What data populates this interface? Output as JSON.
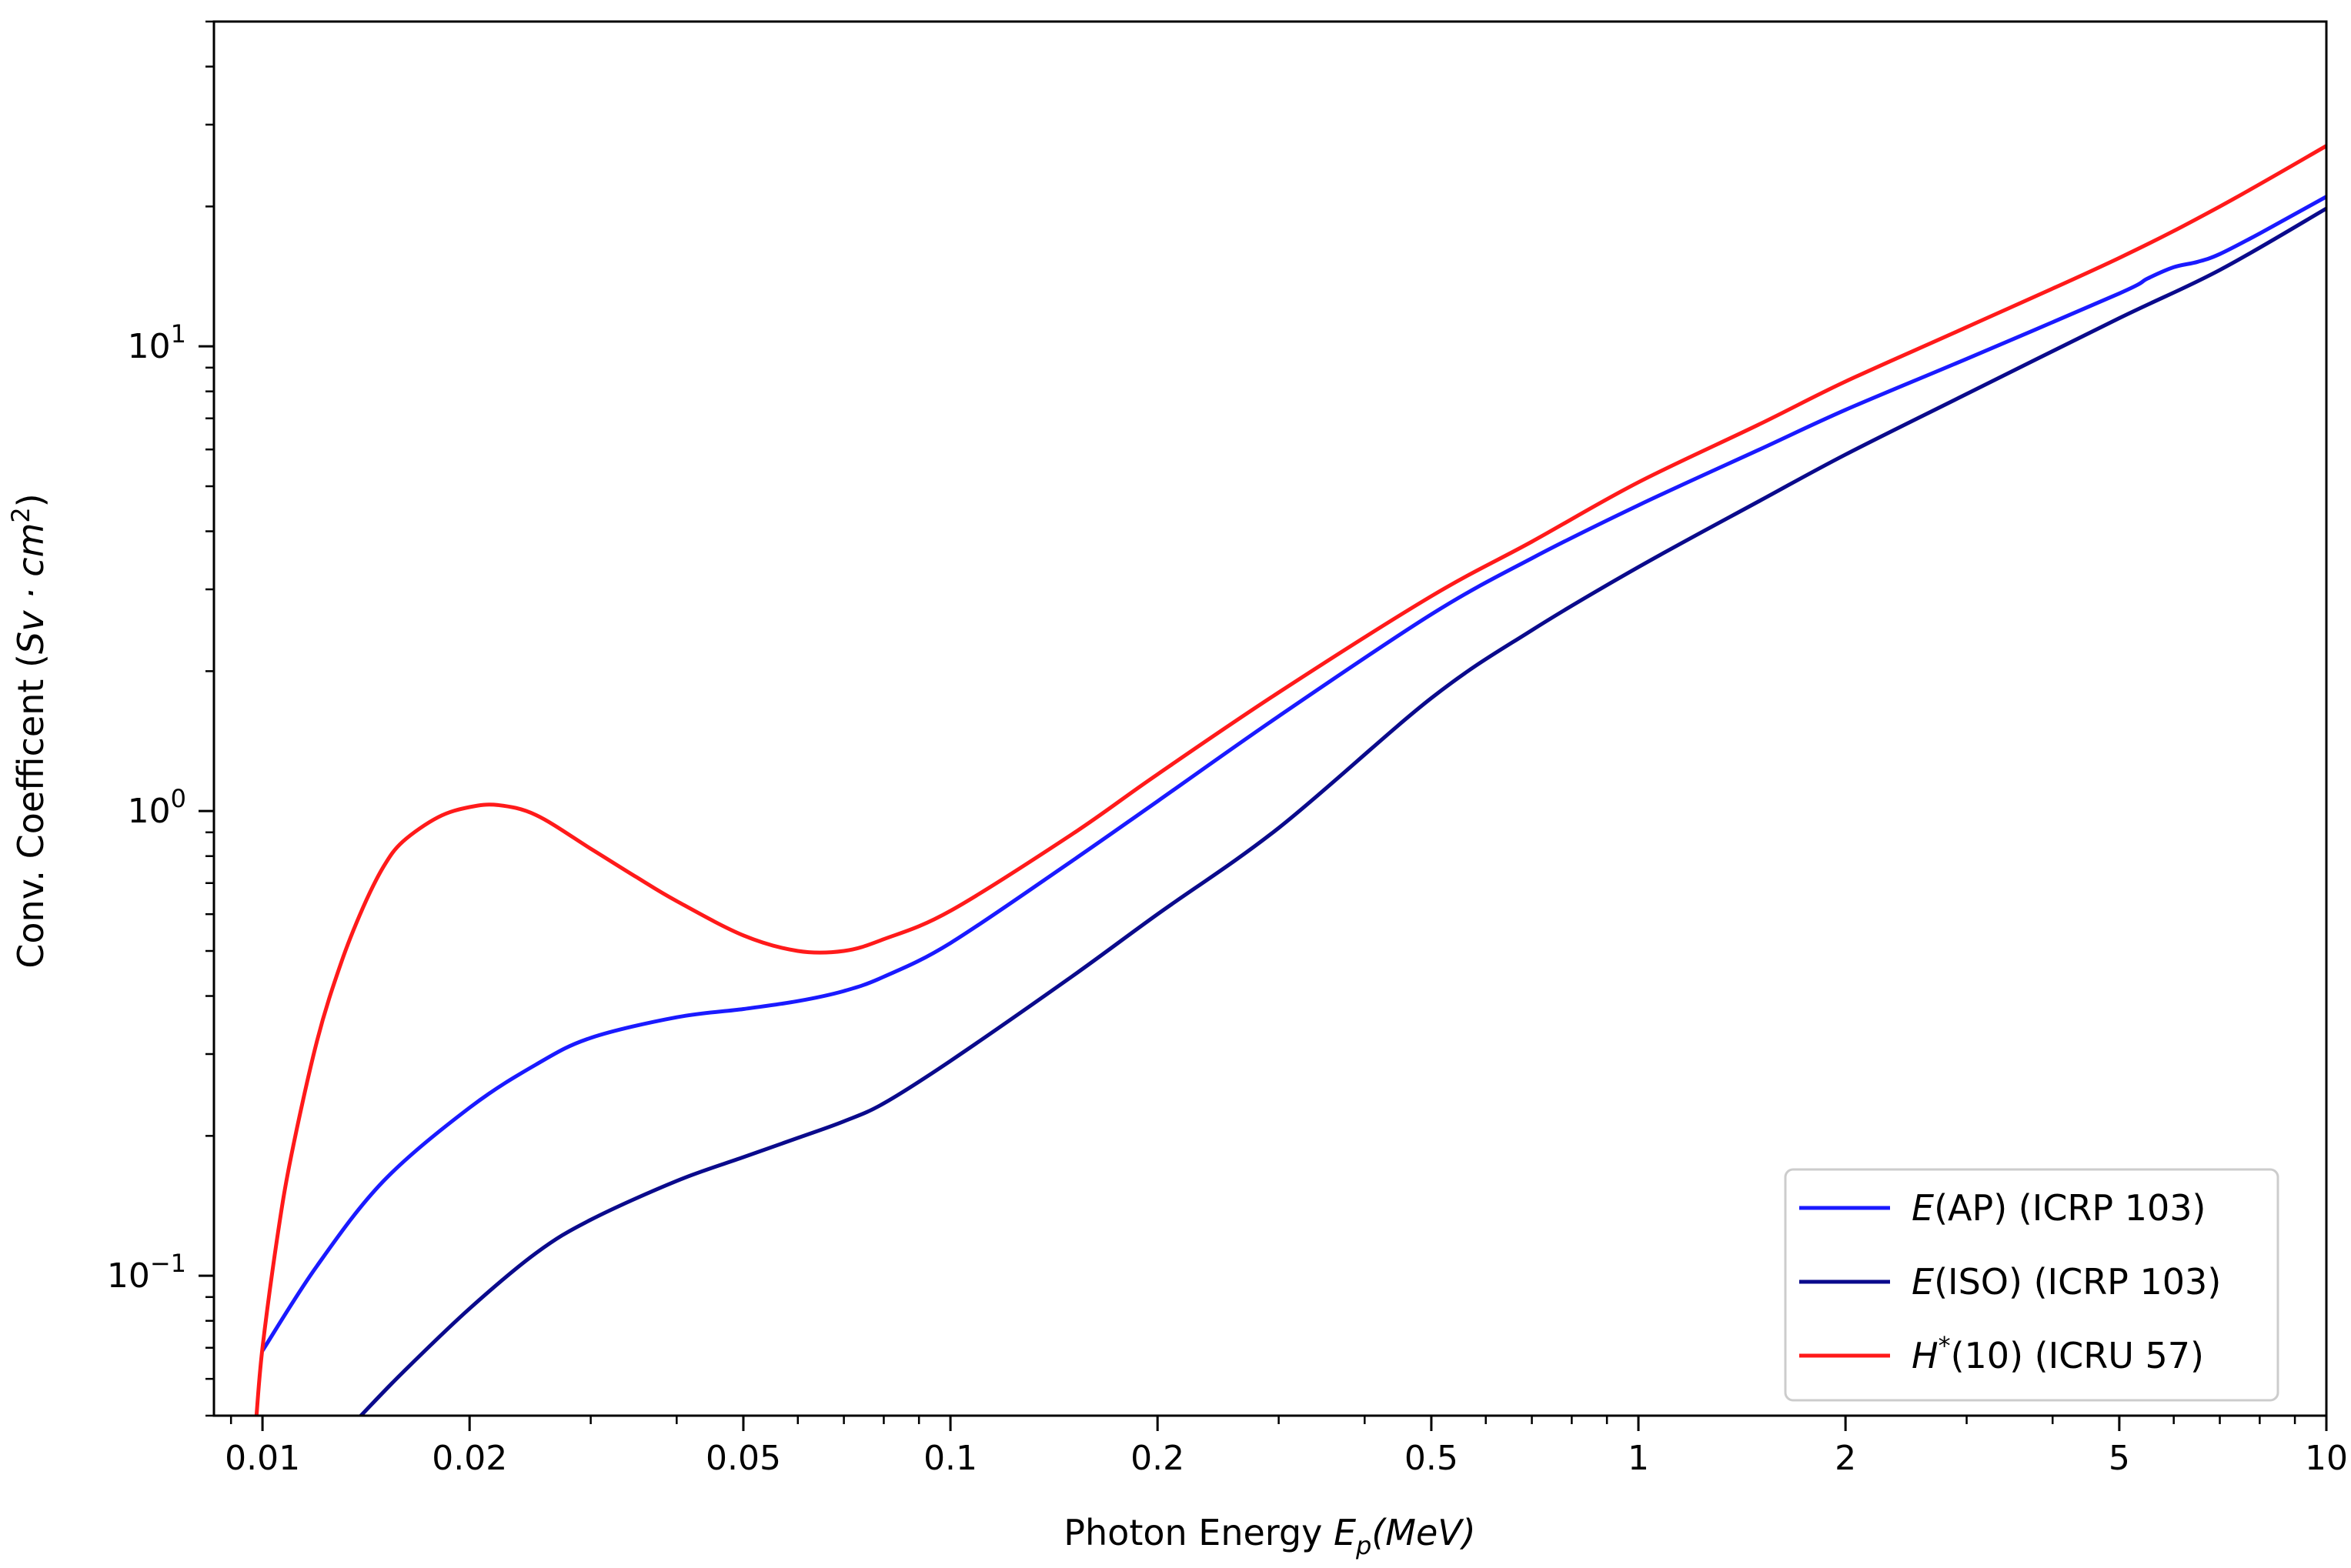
{
  "chart_data": {
    "type": "line",
    "xlabel": {
      "main": "Photon Energy ",
      "var": "E",
      "sub": "p",
      "unit": "(MeV)"
    },
    "ylabel": {
      "main": "Conv. Coefficent (",
      "unit": "Sv · cm",
      "sup": "2",
      "close": ")"
    },
    "x_scale": "log",
    "y_scale": "log",
    "xlim": [
      0.0085,
      10
    ],
    "ylim": [
      0.05,
      50
    ],
    "x_ticks": [
      {
        "value": 0.01,
        "label": "0.01"
      },
      {
        "value": 0.02,
        "label": "0.02"
      },
      {
        "value": 0.05,
        "label": "0.05"
      },
      {
        "value": 0.1,
        "label": "0.1"
      },
      {
        "value": 0.2,
        "label": "0.2"
      },
      {
        "value": 0.5,
        "label": "0.5"
      },
      {
        "value": 1,
        "label": "1"
      },
      {
        "value": 2,
        "label": "2"
      },
      {
        "value": 5,
        "label": "5"
      },
      {
        "value": 10,
        "label": "10"
      }
    ],
    "y_ticks": [
      {
        "value": 0.1,
        "base": "10",
        "exp": "−1"
      },
      {
        "value": 1,
        "base": "10",
        "exp": "0"
      },
      {
        "value": 10,
        "base": "10",
        "exp": "1"
      }
    ],
    "grid": false,
    "legend_position": "bottom-right",
    "series": [
      {
        "name": "E(AP) (ICRP 103)",
        "legend": {
          "italic": "E",
          "rest": "(AP) (ICRP 103)"
        },
        "color": "#1a1aff",
        "x": [
          0.01,
          0.012,
          0.015,
          0.02,
          0.025,
          0.03,
          0.04,
          0.05,
          0.06,
          0.07,
          0.08,
          0.1,
          0.15,
          0.2,
          0.3,
          0.5,
          0.7,
          1.0,
          1.5,
          2.0,
          3.0,
          5.0,
          5.5,
          6.0,
          6.5,
          7.0,
          8.0,
          10.0
        ],
        "y": [
          0.069,
          0.105,
          0.16,
          0.23,
          0.285,
          0.325,
          0.36,
          0.375,
          0.39,
          0.41,
          0.44,
          0.52,
          0.78,
          1.05,
          1.6,
          2.65,
          3.5,
          4.55,
          6.0,
          7.3,
          9.4,
          13.0,
          14.0,
          14.8,
          15.2,
          15.8,
          17.5,
          21.0
        ]
      },
      {
        "name": "E(ISO) (ICRP 103)",
        "legend": {
          "italic": "E",
          "rest": "(ISO) (ICRP 103)"
        },
        "color": "#0a0a8c",
        "x": [
          0.0139,
          0.016,
          0.02,
          0.025,
          0.03,
          0.04,
          0.05,
          0.06,
          0.07,
          0.08,
          0.1,
          0.15,
          0.2,
          0.3,
          0.5,
          0.7,
          1.0,
          1.5,
          2.0,
          3.0,
          5.0,
          7.0,
          10.0
        ],
        "y": [
          0.05,
          0.062,
          0.085,
          0.112,
          0.132,
          0.16,
          0.18,
          0.198,
          0.215,
          0.235,
          0.29,
          0.44,
          0.6,
          0.92,
          1.75,
          2.45,
          3.35,
          4.65,
          5.85,
          7.9,
          11.5,
          14.6,
          19.8
        ]
      },
      {
        "name": "H*(10) (ICRU 57)",
        "legend": {
          "italic": "H",
          "sup": "*",
          "rest": "(10) (ICRU 57)"
        },
        "color": "#ff1a1a",
        "x": [
          0.0098,
          0.01,
          0.0105,
          0.011,
          0.012,
          0.013,
          0.014,
          0.015,
          0.016,
          0.018,
          0.02,
          0.022,
          0.025,
          0.03,
          0.035,
          0.04,
          0.05,
          0.06,
          0.07,
          0.08,
          0.1,
          0.15,
          0.2,
          0.3,
          0.5,
          0.7,
          1.0,
          1.5,
          2.0,
          3.0,
          5.0,
          7.0,
          10.0
        ],
        "y": [
          0.05,
          0.07,
          0.12,
          0.18,
          0.32,
          0.47,
          0.62,
          0.76,
          0.86,
          0.97,
          1.02,
          1.03,
          0.98,
          0.83,
          0.72,
          0.64,
          0.54,
          0.5,
          0.5,
          0.53,
          0.61,
          0.89,
          1.2,
          1.8,
          2.9,
          3.8,
          5.1,
          6.8,
          8.4,
          11.0,
          15.5,
          20.0,
          27.0
        ]
      }
    ]
  }
}
